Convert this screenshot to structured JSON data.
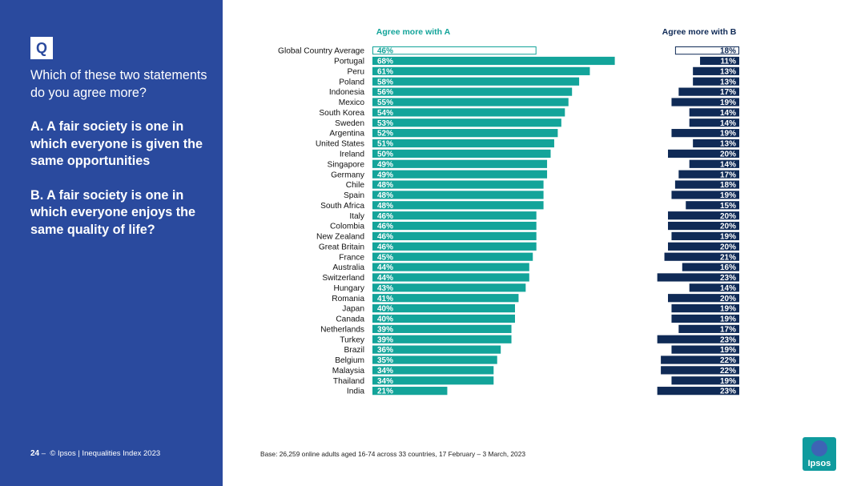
{
  "colors": {
    "panel": "#2a4a9e",
    "series_a": "#13a49a",
    "series_b": "#0f2a56",
    "accent_text": "#13a49a"
  },
  "question": {
    "badge": "Q",
    "intro": "Which of these two statements do you agree more?",
    "option_a": "A. A fair society is one in which everyone is given the same opportunities",
    "option_b": "B. A fair society is one in which everyone enjoys the same quality of life?"
  },
  "footer": {
    "page_number": "24",
    "page_separator": "–",
    "copyright": "© Ipsos | Inequalities Index 2023",
    "base_note": "Base: 26,259 online adults aged 16-74 across 33 countries, 17 February – 3 March, 2023",
    "logo_text": "Ipsos"
  },
  "chart_data": {
    "type": "bar",
    "orientation": "horizontal",
    "categories": [
      "Global Country Average",
      "Portugal",
      "Peru",
      "Poland",
      "Indonesia",
      "Mexico",
      "South Korea",
      "Sweden",
      "Argentina",
      "United States",
      "Ireland",
      "Singapore",
      "Germany",
      "Chile",
      "Spain",
      "South Africa",
      "Italy",
      "Colombia",
      "New Zealand",
      "Great Britain",
      "France",
      "Australia",
      "Switzerland",
      "Hungary",
      "Romania",
      "Japan",
      "Canada",
      "Netherlands",
      "Turkey",
      "Brazil",
      "Belgium",
      "Malaysia",
      "Thailand",
      "India"
    ],
    "series": [
      {
        "name": "Agree more with A",
        "values": [
          46,
          68,
          61,
          58,
          56,
          55,
          54,
          53,
          52,
          51,
          50,
          49,
          49,
          48,
          48,
          48,
          46,
          46,
          46,
          46,
          45,
          44,
          44,
          43,
          41,
          40,
          40,
          39,
          39,
          36,
          35,
          34,
          34,
          21
        ]
      },
      {
        "name": "Agree more with B",
        "values": [
          18,
          11,
          13,
          13,
          17,
          19,
          14,
          14,
          19,
          13,
          20,
          14,
          17,
          18,
          19,
          15,
          20,
          20,
          19,
          20,
          21,
          16,
          23,
          14,
          20,
          19,
          19,
          17,
          23,
          19,
          22,
          22,
          19,
          23
        ]
      }
    ],
    "highlight_category": "Global Country Average",
    "value_suffix": "%",
    "xlim": [
      0,
      100
    ]
  }
}
